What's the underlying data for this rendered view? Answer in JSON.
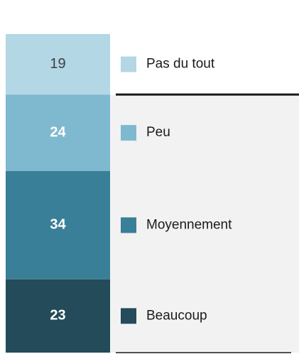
{
  "chart_data": {
    "type": "bar",
    "stacked": true,
    "categories": [
      null
    ],
    "series": [
      {
        "name": "Pas du tout",
        "color": "#b3d7e4",
        "values": [
          19
        ]
      },
      {
        "name": "Peu",
        "color": "#7fb9d0",
        "values": [
          24
        ]
      },
      {
        "name": "Moyennement",
        "color": "#3a7f98",
        "values": [
          34
        ]
      },
      {
        "name": "Beaucoup",
        "color": "#234b5a",
        "values": [
          23
        ]
      }
    ]
  }
}
